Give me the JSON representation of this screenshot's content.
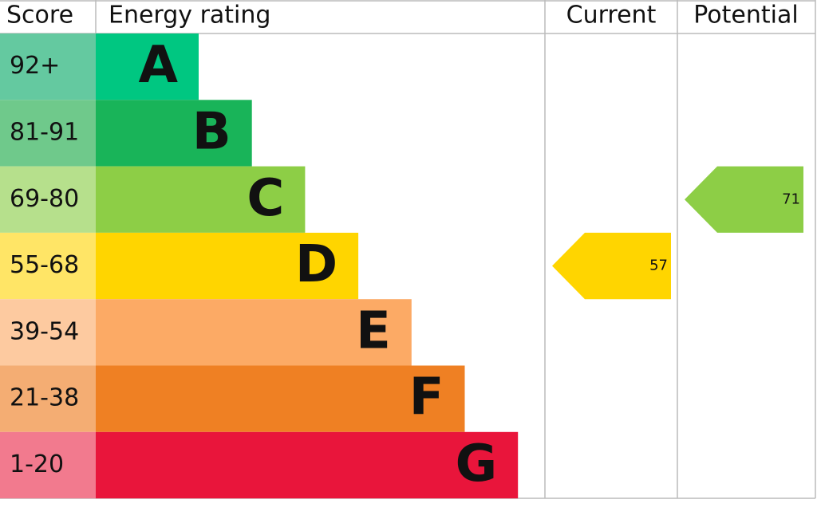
{
  "header": {
    "score": "Score",
    "rating": "Energy rating",
    "current": "Current",
    "potential": "Potential"
  },
  "bands": [
    {
      "score": "92+",
      "letter": "A",
      "color": "#00c781",
      "score_color": "#64c9a0"
    },
    {
      "score": "81-91",
      "letter": "B",
      "color": "#19b459",
      "score_color": "#6fc98b"
    },
    {
      "score": "69-80",
      "letter": "C",
      "color": "#8dce46",
      "score_color": "#b6e08c"
    },
    {
      "score": "55-68",
      "letter": "D",
      "color": "#ffd500",
      "score_color": "#ffe566"
    },
    {
      "score": "39-54",
      "letter": "E",
      "color": "#fcaa65",
      "score_color": "#fdcaa0"
    },
    {
      "score": "21-38",
      "letter": "F",
      "color": "#ef8023",
      "score_color": "#f4ad73"
    },
    {
      "score": "1-20",
      "letter": "G",
      "color": "#e9153b",
      "score_color": "#f27a8e"
    }
  ],
  "current": 57,
  "potential": 71
}
